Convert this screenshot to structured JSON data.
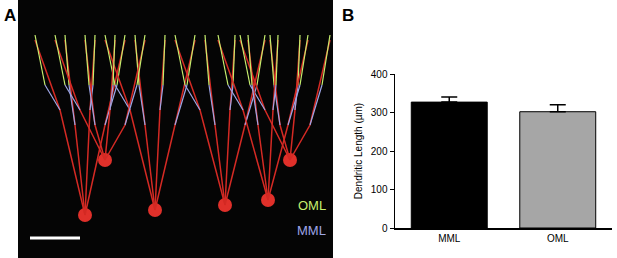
{
  "panel_labels": [
    "A",
    "B"
  ],
  "image_panel": {
    "labels": [
      {
        "text": "OML",
        "color": "#c6ee6e"
      },
      {
        "text": "MML",
        "color": "#9ea6e6"
      }
    ]
  },
  "chart_data": {
    "type": "bar",
    "categories": [
      "MML",
      "OML"
    ],
    "values": [
      327,
      302
    ],
    "errors": [
      13,
      18
    ],
    "colors": [
      "#000000",
      "#a6a6a6"
    ],
    "y_label": "Dendritic Length (µm)",
    "ylim": [
      0,
      400
    ],
    "yticks": [
      0,
      100,
      200,
      300,
      400
    ],
    "grid": false
  }
}
